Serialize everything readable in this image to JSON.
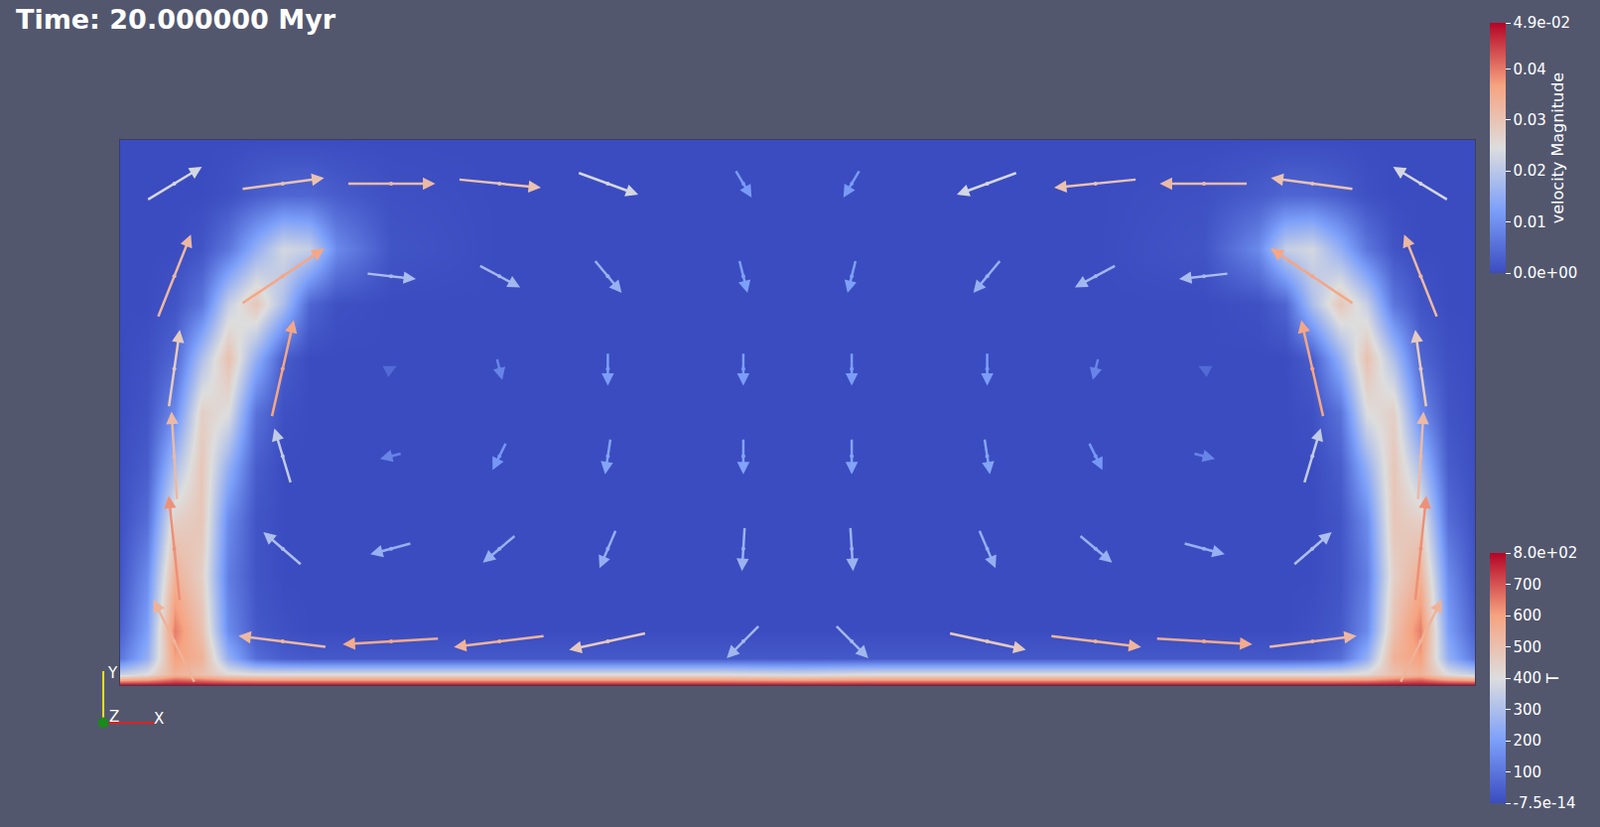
{
  "chart_data": {
    "type": "heatmap",
    "title": "Time: 20.000000 Myr",
    "xlim": [
      0,
      2.5
    ],
    "ylim": [
      0,
      1
    ],
    "tick_labels": false,
    "grid": false,
    "field": {
      "x": [
        0,
        0.05,
        0.1,
        0.15,
        0.2,
        0.25,
        0.3,
        0.35,
        0.4,
        0.5,
        0.7,
        0.9,
        1.1,
        1.25,
        1.4,
        1.6,
        1.8,
        2.0,
        2.1,
        2.15,
        2.2,
        2.25,
        2.3,
        2.35,
        2.4,
        2.45,
        2.5
      ],
      "y": [
        0,
        0.02,
        0.05,
        0.1,
        0.2,
        0.3,
        0.4,
        0.5,
        0.6,
        0.7,
        0.8,
        0.9,
        1.0
      ],
      "z": [
        [
          800,
          800,
          800,
          800,
          800,
          800,
          800,
          800,
          800,
          800,
          800,
          800,
          800,
          800,
          800,
          800,
          800,
          800,
          800,
          800,
          800,
          800,
          800,
          800,
          800,
          800,
          800
        ],
        [
          350,
          400,
          550,
          500,
          420,
          400,
          400,
          400,
          400,
          400,
          400,
          400,
          400,
          380,
          400,
          400,
          400,
          400,
          400,
          400,
          400,
          400,
          420,
          500,
          550,
          400,
          350
        ],
        [
          100,
          250,
          600,
          550,
          250,
          80,
          40,
          30,
          30,
          30,
          30,
          30,
          30,
          30,
          30,
          30,
          30,
          30,
          30,
          30,
          40,
          80,
          250,
          550,
          600,
          250,
          100
        ],
        [
          50,
          200,
          650,
          500,
          150,
          30,
          10,
          0,
          0,
          0,
          0,
          0,
          0,
          0,
          0,
          0,
          0,
          0,
          0,
          0,
          10,
          30,
          150,
          500,
          650,
          200,
          50
        ],
        [
          20,
          150,
          550,
          450,
          120,
          20,
          0,
          0,
          0,
          0,
          0,
          0,
          0,
          0,
          0,
          0,
          0,
          0,
          0,
          0,
          0,
          20,
          120,
          450,
          550,
          150,
          20
        ],
        [
          10,
          80,
          450,
          480,
          150,
          20,
          0,
          0,
          0,
          0,
          0,
          0,
          0,
          0,
          0,
          0,
          0,
          0,
          0,
          0,
          0,
          20,
          150,
          480,
          450,
          80,
          10
        ],
        [
          5,
          40,
          300,
          480,
          250,
          40,
          0,
          0,
          0,
          0,
          0,
          0,
          0,
          0,
          0,
          0,
          0,
          0,
          0,
          0,
          0,
          40,
          250,
          480,
          300,
          40,
          5
        ],
        [
          0,
          20,
          150,
          450,
          400,
          90,
          10,
          0,
          0,
          0,
          0,
          0,
          0,
          0,
          0,
          0,
          0,
          0,
          0,
          0,
          10,
          90,
          400,
          450,
          150,
          20,
          0
        ],
        [
          0,
          10,
          60,
          300,
          500,
          250,
          40,
          0,
          0,
          0,
          0,
          0,
          0,
          0,
          0,
          0,
          0,
          0,
          0,
          0,
          40,
          250,
          500,
          300,
          60,
          10,
          0
        ],
        [
          0,
          0,
          20,
          100,
          350,
          480,
          300,
          60,
          10,
          0,
          0,
          0,
          0,
          0,
          0,
          0,
          0,
          0,
          10,
          60,
          300,
          480,
          350,
          100,
          20,
          0,
          0
        ],
        [
          0,
          0,
          0,
          20,
          100,
          250,
          380,
          350,
          150,
          20,
          0,
          0,
          0,
          0,
          0,
          0,
          0,
          20,
          150,
          350,
          380,
          250,
          100,
          20,
          0,
          0,
          0
        ],
        [
          0,
          0,
          0,
          0,
          10,
          40,
          60,
          60,
          40,
          10,
          0,
          0,
          0,
          0,
          0,
          0,
          0,
          10,
          40,
          60,
          60,
          40,
          10,
          0,
          0,
          0,
          0
        ],
        [
          0,
          0,
          0,
          0,
          0,
          0,
          0,
          0,
          0,
          0,
          0,
          0,
          0,
          0,
          0,
          0,
          0,
          0,
          0,
          0,
          0,
          0,
          0,
          0,
          0,
          0,
          0
        ]
      ],
      "colorbar": {
        "title": "T",
        "range": [
          -7.5e-14,
          800
        ],
        "ticks": [
          {
            "value": -7.5e-14,
            "label": "-7.5e-14"
          },
          100,
          200,
          300,
          400,
          500,
          600,
          700,
          {
            "value": 800,
            "label": "8.0e+02"
          }
        ]
      }
    },
    "vectors": {
      "x": [
        0.1,
        0.3,
        0.5,
        0.7,
        0.9,
        1.15,
        1.35,
        1.6,
        1.8,
        2.0,
        2.2,
        2.4
      ],
      "y": [
        0.08,
        0.25,
        0.42,
        0.58,
        0.75,
        0.92
      ],
      "u": [
        [
          -0.015,
          -0.032,
          -0.035,
          -0.033,
          -0.028,
          -0.012,
          0.012,
          0.028,
          0.033,
          0.035,
          0.032,
          0.015
        ],
        [
          -0.004,
          -0.014,
          -0.015,
          -0.012,
          -0.006,
          -0.001,
          0.001,
          0.006,
          0.012,
          0.015,
          0.014,
          0.004
        ],
        [
          -0.002,
          -0.006,
          -0.008,
          -0.005,
          -0.002,
          0,
          0,
          0.002,
          0.005,
          0.008,
          0.006,
          0.002
        ],
        [
          0.004,
          0.008,
          0.004,
          0.002,
          0,
          0,
          0,
          0,
          -0.002,
          -0.004,
          -0.008,
          -0.004
        ],
        [
          0.012,
          0.03,
          0.018,
          0.015,
          0.01,
          0.003,
          -0.003,
          -0.01,
          -0.015,
          -0.018,
          -0.03,
          -0.012
        ],
        [
          0.02,
          0.03,
          0.032,
          0.03,
          0.022,
          0.006,
          -0.006,
          -0.022,
          -0.03,
          -0.032,
          -0.03,
          -0.02
        ]
      ],
      "v": [
        [
          0.03,
          0.004,
          -0.002,
          -0.004,
          -0.006,
          -0.012,
          -0.012,
          -0.006,
          -0.004,
          -0.002,
          0.004,
          0.03
        ],
        [
          0.038,
          0.012,
          -0.004,
          -0.01,
          -0.014,
          -0.016,
          -0.016,
          -0.014,
          -0.01,
          -0.004,
          0.012,
          0.038
        ],
        [
          0.032,
          0.02,
          -0.002,
          -0.01,
          -0.013,
          -0.013,
          -0.013,
          -0.013,
          -0.01,
          -0.002,
          0.02,
          0.032
        ],
        [
          0.028,
          0.035,
          0.002,
          -0.008,
          -0.012,
          -0.012,
          -0.012,
          -0.012,
          -0.008,
          0.002,
          0.035,
          0.028
        ],
        [
          0.03,
          0.02,
          -0.002,
          -0.008,
          -0.012,
          -0.012,
          -0.012,
          -0.012,
          -0.008,
          -0.002,
          0.02,
          0.03
        ],
        [
          0.012,
          0.004,
          0,
          -0.003,
          -0.008,
          -0.01,
          -0.01,
          -0.008,
          -0.003,
          0,
          0.004,
          0.012
        ]
      ],
      "colorbar": {
        "title": "velocity Magnitude",
        "range": [
          0,
          0.049
        ],
        "ticks": [
          {
            "value": 0,
            "label": "0.0e+00"
          },
          0.01,
          0.02,
          0.03,
          0.04,
          {
            "value": 0.049,
            "label": "4.9e-02"
          }
        ]
      }
    },
    "axes_triad": [
      "X",
      "Y",
      "Z"
    ]
  }
}
